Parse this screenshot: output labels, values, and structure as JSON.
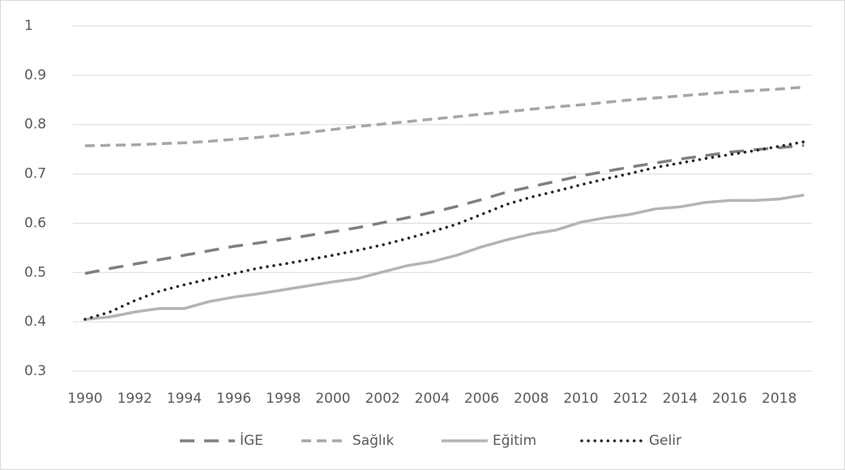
{
  "chart_data": {
    "type": "line",
    "categories": [
      "1990",
      null,
      "1992",
      null,
      "1994",
      null,
      "1996",
      null,
      "1998",
      null,
      "2000",
      null,
      "2002",
      null,
      "2004",
      null,
      "2006",
      null,
      "2008",
      null,
      "2010",
      null,
      "2012",
      null,
      "2014",
      null,
      "2016",
      null,
      "2018",
      null
    ],
    "series": [
      {
        "name": "İGE",
        "color": "#7f7f7f",
        "dash": "long-dash",
        "values": [
          0.498,
          0.508,
          0.517,
          0.526,
          0.535,
          0.544,
          0.553,
          0.56,
          0.567,
          0.575,
          0.583,
          0.591,
          0.601,
          0.611,
          0.622,
          0.634,
          0.648,
          0.663,
          0.674,
          0.685,
          0.696,
          0.705,
          0.714,
          0.722,
          0.73,
          0.737,
          0.744,
          0.749,
          0.753,
          0.758
        ]
      },
      {
        "name": "Sağlık",
        "color": "#a6a6a6",
        "dash": "dash",
        "values": [
          0.757,
          0.758,
          0.759,
          0.761,
          0.763,
          0.766,
          0.77,
          0.774,
          0.779,
          0.784,
          0.79,
          0.796,
          0.801,
          0.806,
          0.811,
          0.816,
          0.821,
          0.826,
          0.831,
          0.836,
          0.84,
          0.845,
          0.85,
          0.854,
          0.858,
          0.862,
          0.866,
          0.869,
          0.872,
          0.876
        ]
      },
      {
        "name": "Eğitim",
        "color": "#b4b4b4",
        "dash": "solid",
        "values": [
          0.405,
          0.41,
          0.42,
          0.427,
          0.427,
          0.441,
          0.45,
          0.457,
          0.465,
          0.473,
          0.481,
          0.488,
          0.501,
          0.514,
          0.522,
          0.535,
          0.552,
          0.566,
          0.578,
          0.586,
          0.602,
          0.611,
          0.618,
          0.629,
          0.633,
          0.642,
          0.646,
          0.646,
          0.649,
          0.657
        ]
      },
      {
        "name": "Gelir",
        "color": "#262626",
        "dash": "dot",
        "values": [
          0.405,
          0.42,
          0.443,
          0.462,
          0.475,
          0.487,
          0.498,
          0.509,
          0.517,
          0.526,
          0.535,
          0.545,
          0.556,
          0.569,
          0.583,
          0.598,
          0.618,
          0.638,
          0.653,
          0.665,
          0.678,
          0.69,
          0.701,
          0.713,
          0.722,
          0.731,
          0.739,
          0.747,
          0.756,
          0.765
        ]
      }
    ],
    "ylim": [
      0.3,
      1
    ],
    "yticks": [
      0.3,
      0.4,
      0.5,
      0.6,
      0.7,
      0.8,
      0.9,
      1
    ],
    "grid": true,
    "legend": "bottom"
  }
}
